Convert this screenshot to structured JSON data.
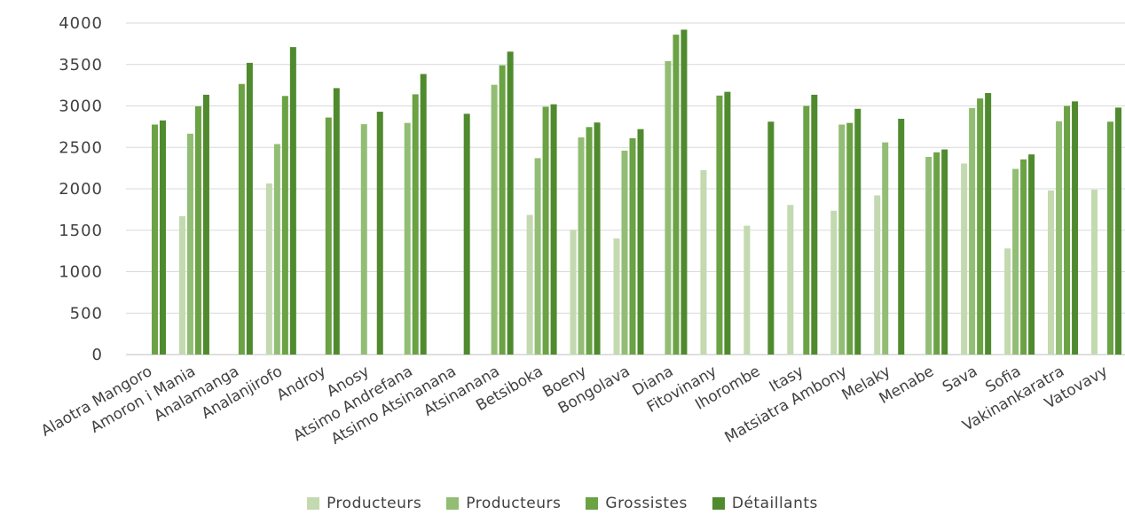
{
  "chart_data": {
    "type": "bar",
    "title": "",
    "xlabel": "",
    "ylabel": "",
    "ylim": [
      0,
      4000
    ],
    "yticks": [
      0,
      500,
      1000,
      1500,
      2000,
      2500,
      3000,
      3500,
      4000
    ],
    "grid": true,
    "legend_position": "bottom",
    "categories": [
      "Alaotra Mangoro",
      "Amoron i Mania",
      "Analamanga",
      "Analanjirofo",
      "Androy",
      "Anosy",
      "Atsimo Andrefana",
      "Atsimo Atsinanana",
      "Atsinanana",
      "Betsiboka",
      "Boeny",
      "Bongolava",
      "Diana",
      "Fitovinany",
      "Ihorombe",
      "Itasy",
      "Matsiatra Ambony",
      "Melaky",
      "Menabe",
      "Sava",
      "Sofia",
      "Vakinankaratra",
      "Vatovavy"
    ],
    "series": [
      {
        "name": "Producteurs",
        "color": "#c3d9b0",
        "values": [
          null,
          1670,
          null,
          2065,
          null,
          null,
          null,
          null,
          null,
          1685,
          1505,
          1400,
          null,
          2225,
          1555,
          1805,
          1735,
          1920,
          null,
          2305,
          1280,
          1980,
          1990
        ]
      },
      {
        "name": "Producteurs",
        "color": "#92bd74",
        "values": [
          null,
          2665,
          null,
          2540,
          null,
          2780,
          2795,
          null,
          3255,
          2370,
          2620,
          2460,
          3540,
          null,
          null,
          null,
          2775,
          2560,
          2385,
          2975,
          2240,
          2815,
          null
        ]
      },
      {
        "name": "Grossistes",
        "color": "#6aa244",
        "values": [
          2775,
          2995,
          3265,
          3120,
          2860,
          null,
          3140,
          null,
          3490,
          2990,
          2745,
          2610,
          3860,
          3125,
          null,
          3000,
          2795,
          null,
          2440,
          3090,
          2355,
          3000,
          2810
        ]
      },
      {
        "name": "Détaillants",
        "color": "#4f8a2e",
        "values": [
          2825,
          3135,
          3520,
          3710,
          3215,
          2930,
          3385,
          2905,
          3655,
          3020,
          2800,
          2720,
          3920,
          3170,
          2810,
          3135,
          2965,
          2845,
          2475,
          3155,
          2415,
          3055,
          2980
        ]
      }
    ]
  }
}
